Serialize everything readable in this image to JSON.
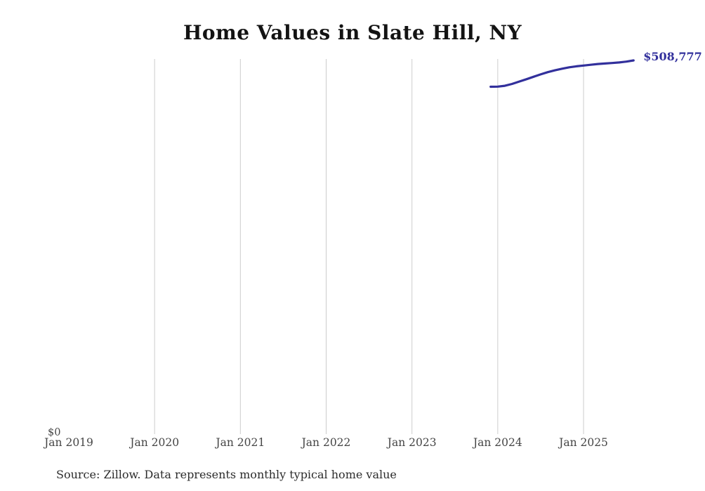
{
  "title": "Home Values in Slate Hill, NY",
  "y_zero_label": "$0",
  "source_note": "Source: Zillow. Data represents monthly typical home value",
  "colors": {
    "line": "#32309c",
    "end_label": "#32309c",
    "gridline": "#cdcdcd",
    "tick_label": "#454545",
    "title": "#131313",
    "background": "#ffffff"
  },
  "chart_data": {
    "type": "line",
    "title": "Home Values in Slate Hill, NY",
    "xlabel": "",
    "ylabel": "",
    "grid": "vertical-only",
    "legend": "none",
    "ylim": [
      0,
      510000
    ],
    "x_tick_labels": [
      "Jan 2019",
      "Jan 2020",
      "Jan 2021",
      "Jan 2022",
      "Jan 2023",
      "Jan 2024",
      "Jan 2025"
    ],
    "gridline_years": [
      2020,
      2021,
      2022,
      2023,
      2024,
      2025
    ],
    "series": [
      {
        "name": "Monthly typical home value",
        "end_label": "$508,777",
        "points": [
          [
            "2023-12",
            473000
          ],
          [
            "2024-01",
            473200
          ],
          [
            "2024-02",
            474300
          ],
          [
            "2024-03",
            476800
          ],
          [
            "2024-04",
            480000
          ],
          [
            "2024-05",
            483200
          ],
          [
            "2024-06",
            486500
          ],
          [
            "2024-07",
            489800
          ],
          [
            "2024-08",
            492800
          ],
          [
            "2024-09",
            495300
          ],
          [
            "2024-10",
            497500
          ],
          [
            "2024-11",
            499400
          ],
          [
            "2024-12",
            500800
          ],
          [
            "2025-01",
            501800
          ],
          [
            "2025-02",
            502900
          ],
          [
            "2025-03",
            503900
          ],
          [
            "2025-04",
            504600
          ],
          [
            "2025-05",
            505200
          ],
          [
            "2025-06",
            506000
          ],
          [
            "2025-07",
            507200
          ],
          [
            "2025-08",
            508777
          ]
        ]
      }
    ]
  }
}
